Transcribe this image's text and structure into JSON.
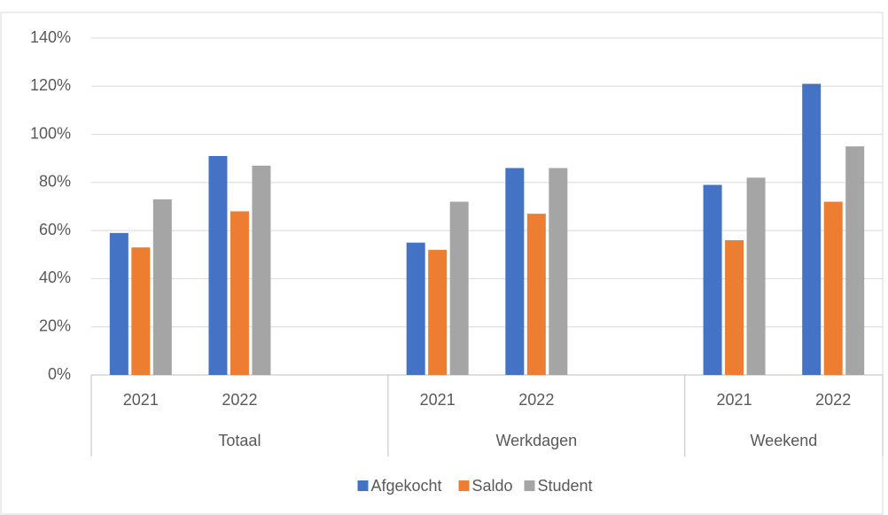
{
  "chart_data": {
    "type": "bar",
    "groups": [
      {
        "label": "Totaal",
        "categories": [
          "2021",
          "2022",
          null
        ]
      },
      {
        "label": "Werkdagen",
        "categories": [
          "2021",
          "2022",
          null
        ]
      },
      {
        "label": "Weekend",
        "categories": [
          "2021",
          "2022"
        ]
      }
    ],
    "series": [
      {
        "name": "Afgekocht",
        "color": "#4472c4",
        "values": [
          59,
          91,
          null,
          55,
          86,
          null,
          79,
          121
        ]
      },
      {
        "name": "Saldo",
        "color": "#ed7d31",
        "values": [
          53,
          68,
          null,
          52,
          67,
          null,
          56,
          72
        ]
      },
      {
        "name": "Student",
        "color": "#a5a5a5",
        "values": [
          73,
          87,
          null,
          72,
          86,
          null,
          82,
          95
        ]
      }
    ],
    "ylim": [
      0,
      140
    ],
    "yticks": [
      {
        "value": 0,
        "label": "0%"
      },
      {
        "value": 20,
        "label": "20%"
      },
      {
        "value": 40,
        "label": "40%"
      },
      {
        "value": 60,
        "label": "60%"
      },
      {
        "value": 80,
        "label": "80%"
      },
      {
        "value": 100,
        "label": "100%"
      },
      {
        "value": 120,
        "label": "120%"
      },
      {
        "value": 140,
        "label": "140%"
      }
    ],
    "grid": true,
    "legend": "bottom"
  }
}
